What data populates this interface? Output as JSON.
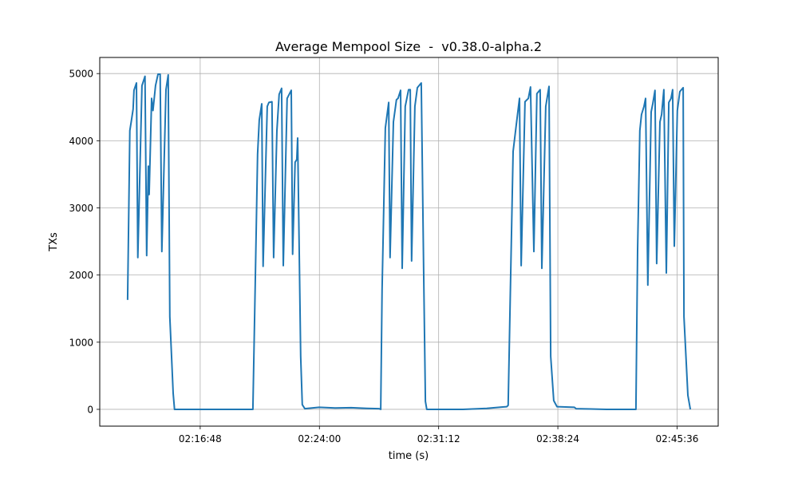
{
  "chart_data": {
    "type": "line",
    "title": "Average Mempool Size  -  v0.38.0-alpha.2",
    "xlabel": "time (s)",
    "ylabel": "TXs",
    "xlim": [
      "02:10:44",
      "02:48:05"
    ],
    "ylim": [
      -250,
      5240
    ],
    "xticks": [
      "02:16:48",
      "02:24:00",
      "02:31:12",
      "02:38:24",
      "02:45:36"
    ],
    "yticks": [
      0,
      1000,
      2000,
      3000,
      4000,
      5000
    ],
    "grid": true,
    "line_color": "#1f77b4",
    "series": [
      {
        "x": [
          "02:12:25",
          "02:12:33",
          "02:12:39",
          "02:12:45",
          "02:12:48",
          "02:12:57",
          "02:13:02",
          "02:13:17",
          "02:13:28",
          "02:13:34",
          "02:13:40",
          "02:13:43",
          "02:13:52",
          "02:13:57",
          "02:14:06",
          "02:14:15",
          "02:14:23",
          "02:14:29",
          "02:14:44",
          "02:14:52",
          "02:14:58",
          "02:15:10",
          "02:15:15",
          "02:19:59",
          "02:20:08",
          "02:20:16",
          "02:20:22",
          "02:20:31",
          "02:20:36",
          "02:20:51",
          "02:20:57",
          "02:21:08",
          "02:21:14",
          "02:21:26",
          "02:21:34",
          "02:21:43",
          "02:21:49",
          "02:22:03",
          "02:22:18",
          "02:22:23",
          "02:22:32",
          "02:22:38",
          "02:22:41",
          "02:22:52",
          "02:22:58",
          "02:23:07",
          "02:23:59",
          "02:24:57",
          "02:25:55",
          "02:26:52",
          "02:27:36",
          "02:27:42",
          "02:27:47",
          "02:27:59",
          "02:28:11",
          "02:28:16",
          "02:28:28",
          "02:28:39",
          "02:28:45",
          "02:28:54",
          "02:29:00",
          "02:29:11",
          "02:29:23",
          "02:29:29",
          "02:29:34",
          "02:29:46",
          "02:29:55",
          "02:30:09",
          "02:30:18",
          "02:30:24",
          "02:30:29",
          "02:32:40",
          "02:34:06",
          "02:35:04",
          "02:35:19",
          "02:35:24",
          "02:35:33",
          "02:35:42",
          "02:35:53",
          "02:36:05",
          "02:36:11",
          "02:36:25",
          "02:36:37",
          "02:36:45",
          "02:36:57",
          "02:37:08",
          "02:37:20",
          "02:37:26",
          "02:37:40",
          "02:37:52",
          "02:37:58",
          "02:38:09",
          "02:38:21",
          "02:39:24",
          "02:39:30",
          "02:40:22",
          "02:41:20",
          "02:43:07",
          "02:43:13",
          "02:43:21",
          "02:43:27",
          "02:43:36",
          "02:43:42",
          "02:43:50",
          "02:44:02",
          "02:44:08",
          "02:44:16",
          "02:44:22",
          "02:44:34",
          "02:44:40",
          "02:44:48",
          "02:44:57",
          "02:45:06",
          "02:45:14",
          "02:45:20",
          "02:45:26",
          "02:45:37",
          "02:45:46",
          "02:45:58",
          "02:46:01",
          "02:46:15",
          "02:46:24"
        ],
        "y": [
          1630,
          4150,
          4310,
          4470,
          4750,
          4860,
          2260,
          4820,
          4960,
          2290,
          3620,
          3200,
          4630,
          4450,
          4820,
          4990,
          4990,
          2350,
          4760,
          4980,
          1380,
          240,
          0,
          0,
          1970,
          3800,
          4310,
          4550,
          2130,
          4510,
          4570,
          4580,
          2260,
          4150,
          4690,
          4780,
          2140,
          4630,
          4750,
          2310,
          3680,
          3720,
          4040,
          790,
          70,
          10,
          30,
          20,
          25,
          15,
          10,
          0,
          1780,
          4190,
          4570,
          2260,
          4280,
          4610,
          4630,
          4750,
          2100,
          4510,
          4760,
          4760,
          2210,
          4510,
          4790,
          4860,
          1970,
          120,
          0,
          0,
          15,
          35,
          40,
          60,
          1970,
          3840,
          4230,
          4630,
          2140,
          4580,
          4630,
          4800,
          2350,
          4700,
          4760,
          2100,
          4510,
          4810,
          790,
          130,
          40,
          30,
          10,
          5,
          0,
          0,
          2370,
          4150,
          4390,
          4510,
          4630,
          1850,
          4430,
          4550,
          4750,
          2170,
          4280,
          4390,
          4760,
          2030,
          4570,
          4630,
          4760,
          2430,
          4450,
          4730,
          4790,
          1380,
          210,
          0
        ]
      }
    ]
  }
}
